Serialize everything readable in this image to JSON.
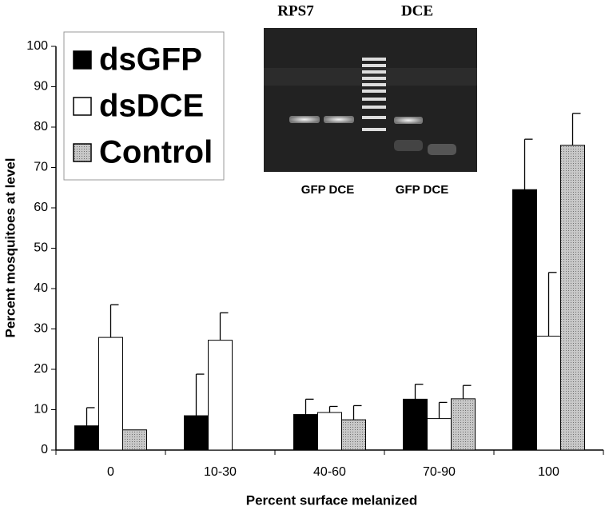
{
  "chart_data": {
    "type": "bar",
    "xlabel": "Percent surface melanized",
    "ylabel": "Percent mosquitoes at level",
    "categories": [
      "0",
      "10-30",
      "40-60",
      "70-90",
      "100"
    ],
    "series": [
      {
        "name": "dsGFP",
        "color": "#000000",
        "values": [
          6,
          8.5,
          8.8,
          12.6,
          64.5
        ],
        "errors": [
          4.5,
          10.3,
          3.8,
          3.7,
          12.5
        ]
      },
      {
        "name": "dsDCE",
        "color": "#ffffff",
        "values": [
          27.9,
          27.2,
          9.3,
          7.8,
          28.2
        ],
        "errors": [
          8.1,
          6.8,
          1.5,
          4,
          15.8
        ]
      },
      {
        "name": "Control",
        "color": "#a8a8a8",
        "values": [
          5,
          0,
          7.5,
          12.7,
          75.5
        ],
        "errors": [
          null,
          null,
          3.5,
          3.3,
          7.9
        ]
      }
    ],
    "ylim": [
      0,
      100
    ],
    "yticks": [
      0,
      10,
      20,
      30,
      40,
      50,
      60,
      70,
      80,
      90,
      100
    ],
    "grid": false,
    "legend": "upper left",
    "inset": {
      "top_labels": [
        "RPS7",
        "DCE"
      ],
      "bottom_labels": [
        "GFP DCE",
        "GFP DCE"
      ]
    }
  }
}
